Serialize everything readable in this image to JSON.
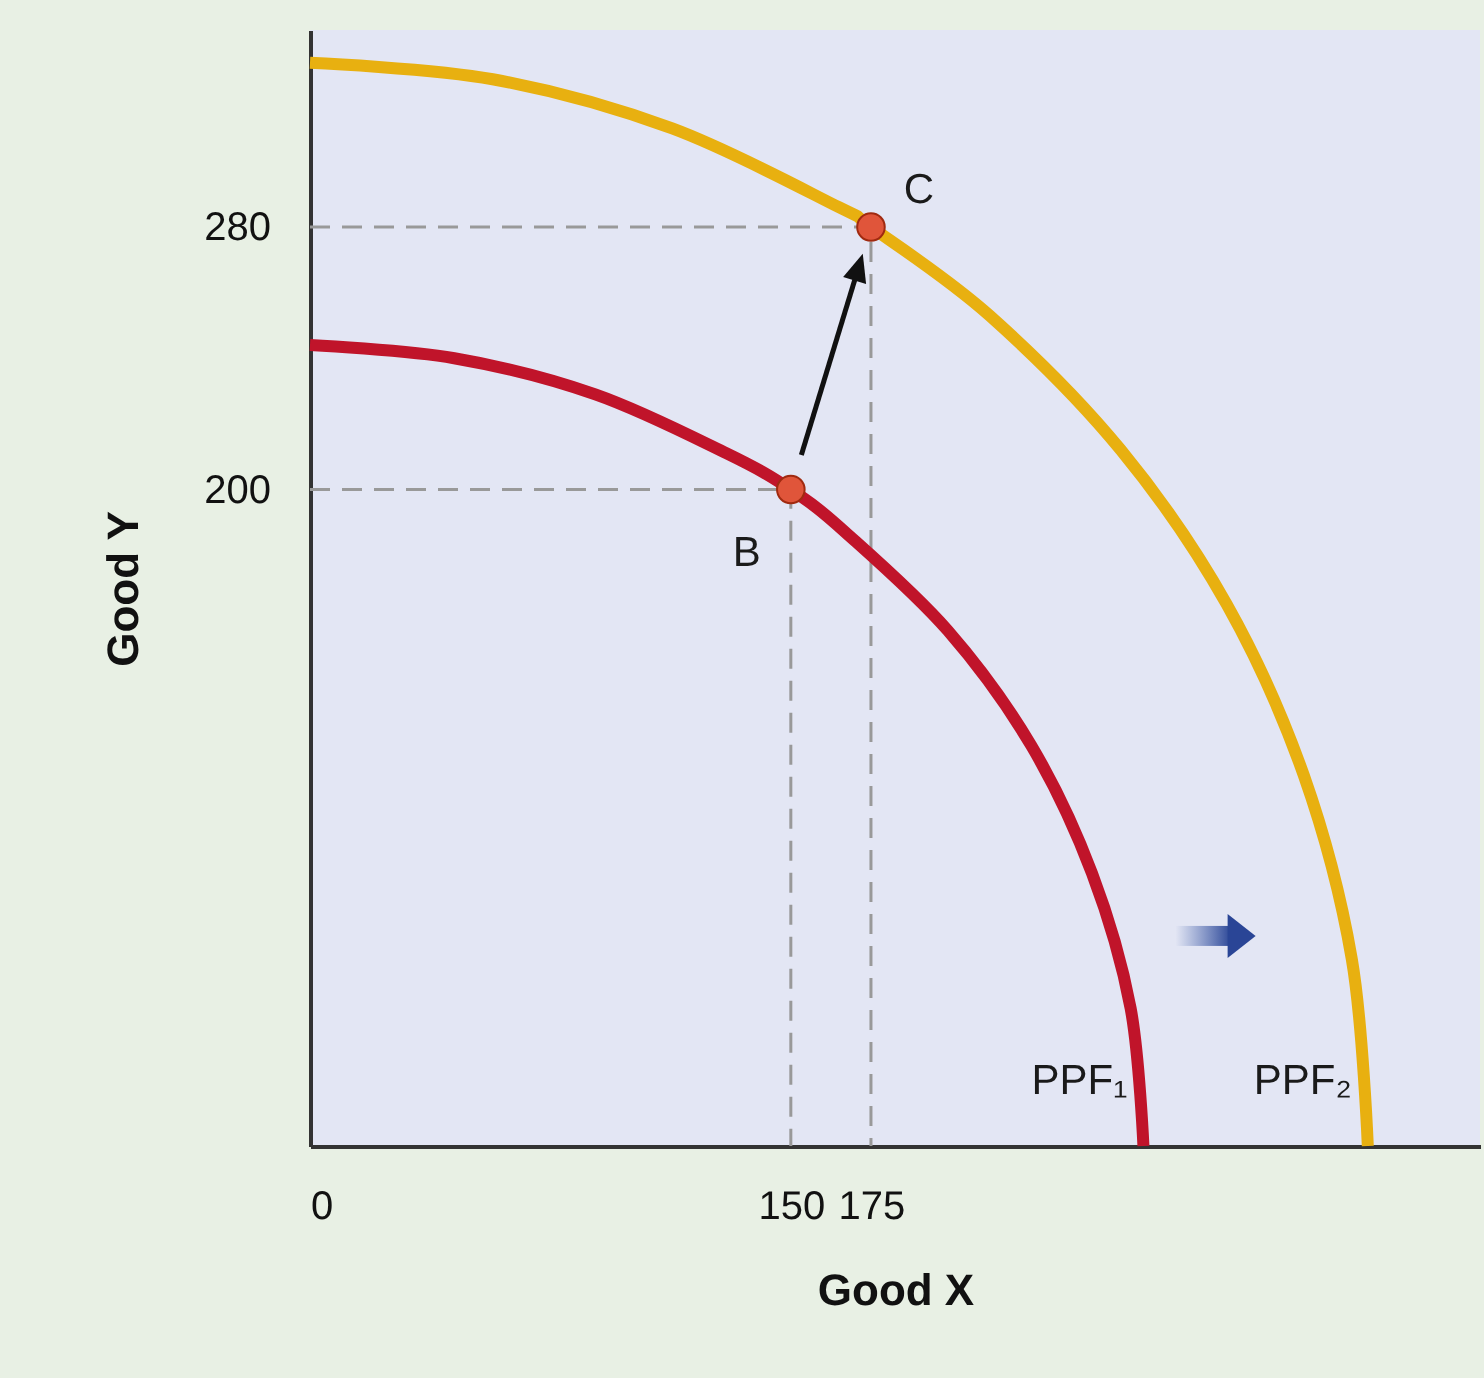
{
  "chart_data": {
    "type": "line",
    "xlabel": "Good X",
    "ylabel": "Good Y",
    "xlim": [
      0,
      365
    ],
    "ylim": [
      0,
      340
    ],
    "xticks": [
      0,
      150,
      175
    ],
    "yticks": [
      200,
      280
    ],
    "series": [
      {
        "type": "line",
        "color": "#999999",
        "line_style": "dashed",
        "x": [
          0,
          150,
          150
        ],
        "values": [
          200,
          200,
          0
        ]
      },
      {
        "type": "line",
        "color": "#999999",
        "line_style": "dashed",
        "x": [
          0,
          175,
          175
        ],
        "values": [
          280,
          280,
          0
        ]
      },
      {
        "type": "line",
        "name": "PPF₁",
        "color": "#c0142a",
        "x": [
          260,
          256,
          244,
          225,
          199,
          167,
          150,
          130,
          89,
          45,
          0
        ],
        "values": [
          0,
          42,
          83,
          122,
          157,
          187,
          200,
          211,
          229,
          240,
          244
        ]
      },
      {
        "type": "line",
        "name": "PPF₂",
        "color": "#e8b010",
        "x": [
          330,
          325,
          310,
          286,
          253,
          212,
          175,
          165,
          113,
          57,
          0
        ],
        "values": [
          0,
          57,
          113,
          165,
          212,
          253,
          280,
          286,
          310,
          325,
          330
        ]
      },
      {
        "type": "scatter",
        "color": "#e0553a",
        "marker": "circle",
        "x": [
          150,
          175
        ],
        "values": [
          200,
          280
        ]
      }
    ],
    "annotations": [
      {
        "text": "B",
        "x": 150,
        "y": 200
      },
      {
        "text": "C",
        "x": 175,
        "y": 280
      }
    ]
  }
}
